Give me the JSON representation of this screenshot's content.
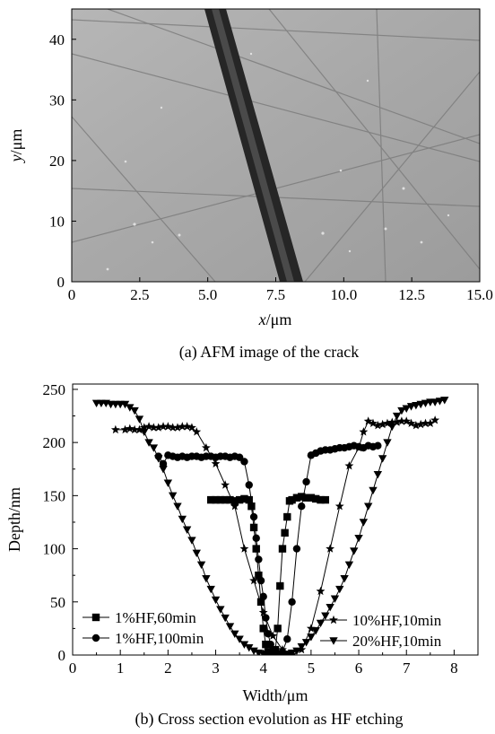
{
  "panel_a": {
    "caption": "(a) AFM image of the crack",
    "image": {
      "kind": "AFM grayscale micrograph",
      "background_color": "#a9a9a9",
      "crack_color": "#2a2a2a"
    },
    "chart_data": {
      "type": "image",
      "xlabel_var": "x",
      "xlabel_unit": "/μm",
      "ylabel_var": "y",
      "ylabel_unit": "/μm",
      "xlim": [
        0,
        15
      ],
      "ylim": [
        0,
        45
      ],
      "xticks": [
        "0",
        "2.5",
        "5.0",
        "7.5",
        "10.0",
        "12.5",
        "15.0"
      ],
      "xtick_values": [
        0,
        2.5,
        5.0,
        7.5,
        10.0,
        12.5,
        15.0
      ],
      "yticks": [
        "0",
        "10",
        "20",
        "30",
        "40"
      ],
      "ytick_values": [
        0,
        10,
        20,
        30,
        40
      ]
    }
  },
  "panel_b": {
    "caption": "(b) Cross section evolution as HF etching",
    "chart_data": {
      "type": "line",
      "xlabel": "Width/μm",
      "ylabel": "Depth/nm",
      "xlim": [
        0,
        8.5
      ],
      "ylim": [
        0,
        255
      ],
      "xticks": [
        "0",
        "1",
        "2",
        "3",
        "4",
        "5",
        "6",
        "7",
        "8"
      ],
      "xtick_values": [
        0,
        1,
        2,
        3,
        4,
        5,
        6,
        7,
        8
      ],
      "yticks": [
        "0",
        "50",
        "100",
        "150",
        "200",
        "250"
      ],
      "ytick_values": [
        0,
        50,
        100,
        150,
        200,
        250
      ],
      "series": [
        {
          "name": "1%HF,60min",
          "marker": "square",
          "x": [
            2.9,
            3.0,
            3.1,
            3.2,
            3.3,
            3.4,
            3.5,
            3.6,
            3.7,
            3.75,
            3.8,
            3.85,
            3.9,
            3.95,
            4.0,
            4.05,
            4.1,
            4.15,
            4.2,
            4.25,
            4.3,
            4.35,
            4.4,
            4.45,
            4.5,
            4.55,
            4.6,
            4.7,
            4.8,
            4.9,
            5.0,
            5.1,
            5.2,
            5.3
          ],
          "y": [
            146,
            146,
            146,
            146,
            146,
            145,
            146,
            147,
            146,
            140,
            120,
            100,
            75,
            50,
            25,
            10,
            3,
            0,
            0,
            5,
            25,
            65,
            100,
            115,
            130,
            145,
            146,
            148,
            149,
            148,
            148,
            147,
            146,
            146
          ]
        },
        {
          "name": "1%HF,100min",
          "marker": "circle",
          "x": [
            1.8,
            1.9,
            2.0,
            2.1,
            2.2,
            2.3,
            2.4,
            2.5,
            2.6,
            2.7,
            2.8,
            2.9,
            3.0,
            3.1,
            3.2,
            3.3,
            3.4,
            3.5,
            3.6,
            3.7,
            3.8,
            3.85,
            3.9,
            3.95,
            4.0,
            4.05,
            4.1,
            4.15,
            4.2,
            4.3,
            4.4,
            4.5,
            4.6,
            4.7,
            4.8,
            4.9,
            5.0,
            5.1,
            5.2,
            5.3,
            5.4,
            5.5,
            5.6,
            5.7,
            5.8,
            5.9,
            6.0,
            6.1,
            6.2,
            6.3,
            6.4
          ],
          "y": [
            187,
            180,
            188,
            187,
            186,
            187,
            186,
            187,
            187,
            186,
            187,
            187,
            186,
            187,
            187,
            186,
            187,
            186,
            182,
            160,
            130,
            110,
            90,
            70,
            55,
            35,
            20,
            10,
            5,
            0,
            3,
            15,
            50,
            100,
            140,
            163,
            188,
            190,
            192,
            193,
            193,
            194,
            195,
            195,
            196,
            197,
            196,
            195,
            197,
            196,
            197
          ]
        },
        {
          "name": "10%HF,10min",
          "marker": "star",
          "x": [
            0.9,
            1.1,
            1.2,
            1.3,
            1.4,
            1.5,
            1.6,
            1.7,
            1.8,
            1.9,
            2.0,
            2.1,
            2.2,
            2.3,
            2.4,
            2.5,
            2.6,
            2.8,
            3.0,
            3.2,
            3.4,
            3.6,
            3.8,
            4.0,
            4.2,
            4.4,
            4.6,
            4.8,
            5.0,
            5.2,
            5.4,
            5.6,
            5.8,
            6.0,
            6.1,
            6.2,
            6.3,
            6.4,
            6.5,
            6.6,
            6.7,
            6.8,
            6.9,
            7.0,
            7.1,
            7.2,
            7.3,
            7.4,
            7.5,
            7.6
          ],
          "y": [
            212,
            212,
            213,
            212,
            212,
            214,
            215,
            214,
            214,
            215,
            215,
            214,
            214,
            215,
            215,
            214,
            210,
            195,
            180,
            160,
            140,
            100,
            70,
            40,
            18,
            5,
            0,
            5,
            25,
            60,
            100,
            140,
            178,
            195,
            210,
            220,
            218,
            216,
            217,
            218,
            219,
            219,
            220,
            220,
            218,
            216,
            217,
            218,
            218,
            221
          ]
        },
        {
          "name": "20%HF,10min",
          "marker": "triangle-down",
          "x": [
            0.5,
            0.6,
            0.7,
            0.8,
            0.9,
            1.0,
            1.1,
            1.2,
            1.3,
            1.4,
            1.5,
            1.6,
            1.7,
            1.8,
            1.9,
            2.0,
            2.1,
            2.2,
            2.3,
            2.4,
            2.5,
            2.6,
            2.7,
            2.8,
            2.9,
            3.0,
            3.1,
            3.2,
            3.3,
            3.4,
            3.5,
            3.6,
            3.7,
            3.8,
            3.9,
            4.0,
            4.1,
            4.2,
            4.3,
            4.4,
            4.5,
            4.6,
            4.7,
            4.8,
            4.9,
            5.0,
            5.1,
            5.2,
            5.3,
            5.4,
            5.5,
            5.6,
            5.7,
            5.8,
            5.9,
            6.0,
            6.1,
            6.2,
            6.3,
            6.4,
            6.5,
            6.6,
            6.7,
            6.8,
            6.9,
            7.0,
            7.1,
            7.2,
            7.3,
            7.4,
            7.5,
            7.6,
            7.7,
            7.8
          ],
          "y": [
            237,
            237,
            237,
            236,
            236,
            236,
            236,
            233,
            230,
            222,
            210,
            200,
            195,
            185,
            175,
            162,
            150,
            140,
            128,
            118,
            108,
            96,
            85,
            72,
            62,
            52,
            43,
            35,
            27,
            20,
            15,
            10,
            7,
            4,
            2,
            1,
            0,
            0,
            0,
            0,
            1,
            2,
            4,
            8,
            12,
            17,
            23,
            30,
            37,
            45,
            53,
            62,
            72,
            85,
            98,
            110,
            125,
            140,
            155,
            170,
            185,
            200,
            215,
            225,
            230,
            232,
            234,
            235,
            236,
            237,
            238,
            238,
            239,
            240
          ]
        }
      ]
    }
  }
}
